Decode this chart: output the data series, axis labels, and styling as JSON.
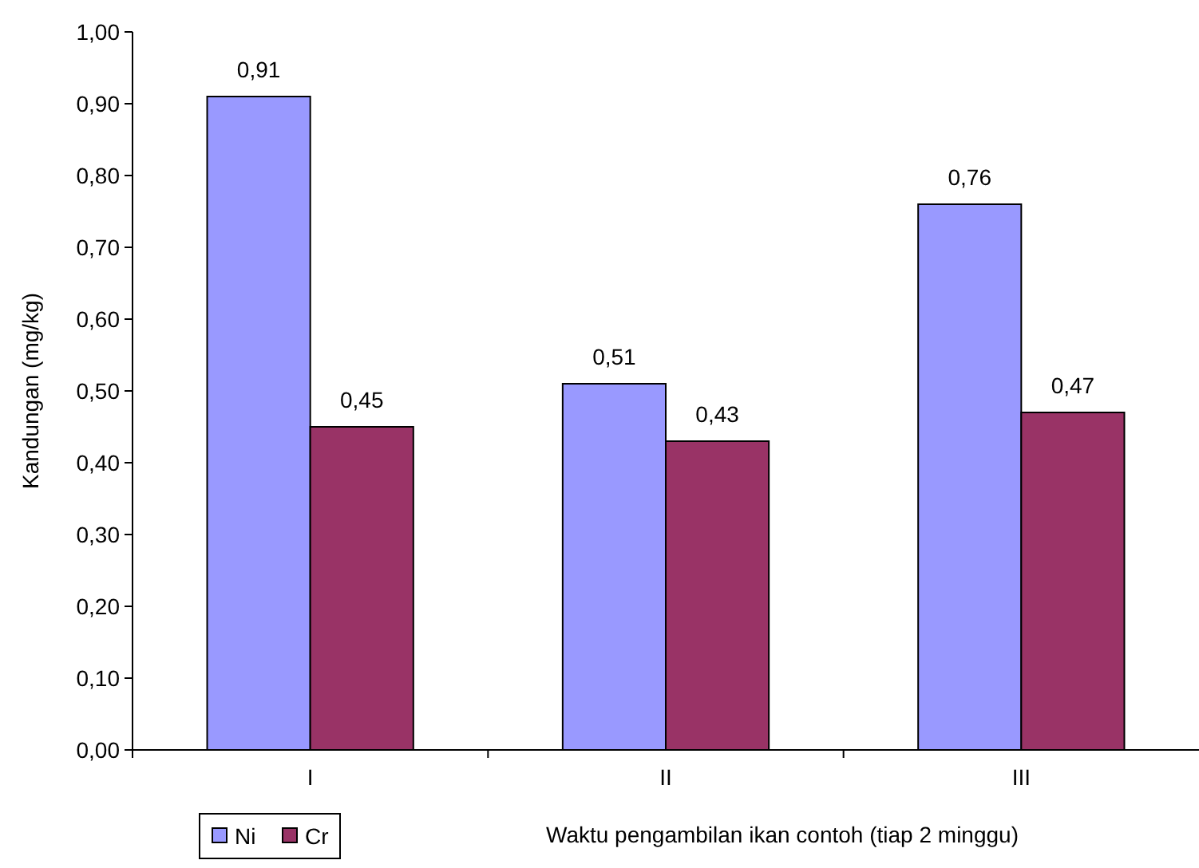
{
  "chart_data": {
    "type": "bar",
    "xlabel": "Waktu pengambilan ikan contoh (tiap 2 minggu)",
    "ylabel": "Kandungan (mg/kg)",
    "categories": [
      "I",
      "II",
      "III"
    ],
    "series": [
      {
        "name": "Ni",
        "color": "#9999ff",
        "values": [
          0.91,
          0.51,
          0.76
        ],
        "value_labels": [
          "0,91",
          "0,51",
          "0,76"
        ]
      },
      {
        "name": "Cr",
        "color": "#993366",
        "values": [
          0.45,
          0.43,
          0.47
        ],
        "value_labels": [
          "0,45",
          "0,43",
          "0,47"
        ]
      }
    ],
    "ylim": [
      0,
      1
    ],
    "yticks": [
      {
        "value": 0,
        "label": "0,00"
      },
      {
        "value": 0.1,
        "label": "0,10"
      },
      {
        "value": 0.2,
        "label": "0,20"
      },
      {
        "value": 0.3,
        "label": "0,30"
      },
      {
        "value": 0.4,
        "label": "0,40"
      },
      {
        "value": 0.5,
        "label": "0,50"
      },
      {
        "value": 0.6,
        "label": "0,60"
      },
      {
        "value": 0.7,
        "label": "0,70"
      },
      {
        "value": 0.8,
        "label": "0,80"
      },
      {
        "value": 0.9,
        "label": "0,90"
      },
      {
        "value": 1,
        "label": "1,00"
      }
    ],
    "grid": false,
    "legend": "bottom left"
  }
}
